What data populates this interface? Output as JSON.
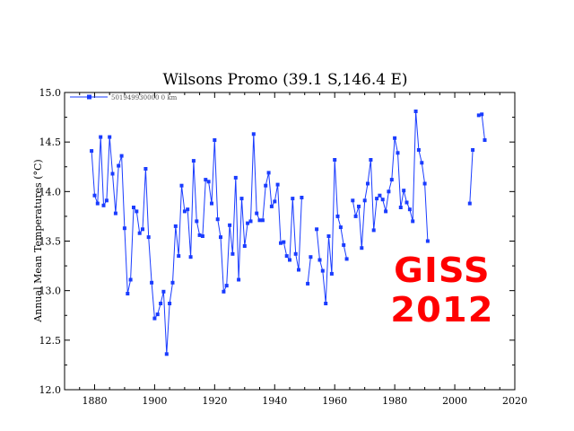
{
  "chart_data": {
    "type": "line",
    "title": "Wilsons Promo (39.1 S,146.4 E)",
    "xlabel": "",
    "ylabel": "Annual Mean Temperatures (°C)",
    "xlim": [
      1870,
      2020
    ],
    "ylim": [
      12.0,
      15.0
    ],
    "xticks": [
      "1880",
      "1900",
      "1920",
      "1940",
      "1960",
      "1980",
      "2000",
      "2020"
    ],
    "yticks": [
      "12.0",
      "12.5",
      "13.0",
      "13.5",
      "14.0",
      "14.5",
      "15.0"
    ],
    "grid": false,
    "legend": "top-left",
    "series": [
      {
        "name": "501949930000 0 km",
        "color": "#1a3cff",
        "segments": [
          [
            [
              1879,
              14.41
            ],
            [
              1880,
              13.96
            ],
            [
              1881,
              13.88
            ],
            [
              1882,
              14.55
            ],
            [
              1883,
              13.86
            ],
            [
              1884,
              13.91
            ],
            [
              1885,
              14.55
            ],
            [
              1886,
              14.18
            ],
            [
              1887,
              13.78
            ],
            [
              1888,
              14.26
            ],
            [
              1889,
              14.36
            ],
            [
              1890,
              13.63
            ],
            [
              1891,
              12.97
            ],
            [
              1892,
              13.11
            ],
            [
              1893,
              13.84
            ],
            [
              1894,
              13.8
            ],
            [
              1895,
              13.58
            ],
            [
              1896,
              13.62
            ],
            [
              1897,
              14.23
            ],
            [
              1898,
              13.54
            ],
            [
              1899,
              13.08
            ],
            [
              1900,
              12.72
            ],
            [
              1901,
              12.76
            ],
            [
              1902,
              12.87
            ],
            [
              1903,
              12.99
            ],
            [
              1904,
              12.36
            ],
            [
              1905,
              12.87
            ],
            [
              1906,
              13.08
            ],
            [
              1907,
              13.65
            ],
            [
              1908,
              13.35
            ],
            [
              1909,
              14.06
            ],
            [
              1910,
              13.8
            ],
            [
              1911,
              13.82
            ],
            [
              1912,
              13.34
            ],
            [
              1913,
              14.31
            ],
            [
              1914,
              13.7
            ],
            [
              1915,
              13.56
            ],
            [
              1916,
              13.55
            ],
            [
              1917,
              14.12
            ],
            [
              1918,
              14.1
            ],
            [
              1919,
              13.88
            ],
            [
              1920,
              14.52
            ],
            [
              1921,
              13.72
            ],
            [
              1922,
              13.54
            ],
            [
              1923,
              12.99
            ],
            [
              1924,
              13.05
            ],
            [
              1925,
              13.66
            ],
            [
              1926,
              13.37
            ],
            [
              1927,
              14.14
            ],
            [
              1928,
              13.11
            ],
            [
              1929,
              13.93
            ],
            [
              1930,
              13.45
            ],
            [
              1931,
              13.68
            ],
            [
              1932,
              13.7
            ],
            [
              1933,
              14.58
            ],
            [
              1934,
              13.78
            ],
            [
              1935,
              13.71
            ],
            [
              1936,
              13.71
            ],
            [
              1937,
              14.06
            ],
            [
              1938,
              14.19
            ],
            [
              1939,
              13.85
            ],
            [
              1940,
              13.9
            ],
            [
              1941,
              14.07
            ],
            [
              1942,
              13.48
            ],
            [
              1943,
              13.49
            ],
            [
              1944,
              13.35
            ],
            [
              1945,
              13.31
            ],
            [
              1946,
              13.93
            ],
            [
              1947,
              13.37
            ],
            [
              1948,
              13.21
            ],
            [
              1949,
              13.94
            ]
          ],
          [
            [
              1951,
              13.07
            ],
            [
              1952,
              13.34
            ]
          ],
          [
            [
              1954,
              13.62
            ],
            [
              1955,
              13.31
            ],
            [
              1956,
              13.2
            ],
            [
              1957,
              12.87
            ],
            [
              1958,
              13.55
            ],
            [
              1959,
              13.17
            ],
            [
              1960,
              14.32
            ],
            [
              1961,
              13.75
            ],
            [
              1962,
              13.64
            ],
            [
              1963,
              13.46
            ],
            [
              1964,
              13.32
            ]
          ],
          [
            [
              1966,
              13.91
            ],
            [
              1967,
              13.75
            ],
            [
              1968,
              13.85
            ],
            [
              1969,
              13.43
            ],
            [
              1970,
              13.91
            ],
            [
              1971,
              14.08
            ],
            [
              1972,
              14.32
            ],
            [
              1973,
              13.61
            ],
            [
              1974,
              13.93
            ],
            [
              1975,
              13.96
            ],
            [
              1976,
              13.92
            ],
            [
              1977,
              13.8
            ],
            [
              1978,
              14.0
            ],
            [
              1979,
              14.12
            ],
            [
              1980,
              14.54
            ],
            [
              1981,
              14.39
            ],
            [
              1982,
              13.84
            ],
            [
              1983,
              14.01
            ],
            [
              1984,
              13.89
            ],
            [
              1985,
              13.82
            ],
            [
              1986,
              13.7
            ],
            [
              1987,
              14.81
            ],
            [
              1988,
              14.42
            ],
            [
              1989,
              14.29
            ],
            [
              1990,
              14.08
            ],
            [
              1991,
              13.5
            ]
          ],
          [
            [
              2005,
              13.88
            ],
            [
              2006,
              14.42
            ]
          ],
          [
            [
              2008,
              14.77
            ],
            [
              2009,
              14.78
            ],
            [
              2010,
              14.52
            ]
          ]
        ]
      }
    ]
  },
  "stamp": {
    "line1": "GISS",
    "line2": "2012",
    "color": "#ff0000"
  }
}
